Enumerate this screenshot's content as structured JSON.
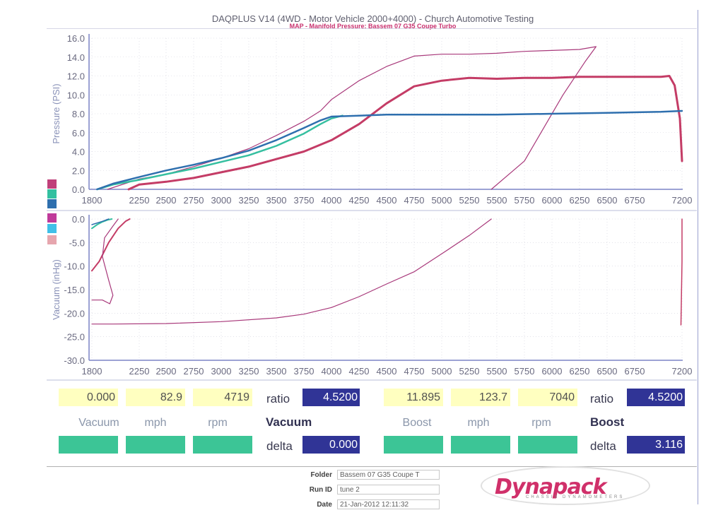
{
  "header": {
    "title": "DAQPLUS V14 (4WD - Motor Vehicle 2000+4000) - Church Automotive Testing",
    "subtitle": "MAP - Manifold Pressure: Bassem 07 G35 Coupe Turbo"
  },
  "colors": {
    "series_red": "#c43c66",
    "series_thin_red": "#a8387a",
    "series_teal": "#35bfa0",
    "series_blue": "#2e6fae",
    "grid": "#d0d0dc",
    "axis": "#7b83c6",
    "legend_top": [
      "#c0407a",
      "#33c0a0",
      "#2e6fae"
    ],
    "legend_bottom": [
      "#c03a9a",
      "#40c0e8",
      "#e6a6ae"
    ]
  },
  "chart_data": [
    {
      "type": "line",
      "ylabel": "Pressure (PSI)",
      "xlim": [
        1800,
        7200
      ],
      "ylim": [
        0,
        16
      ],
      "x_ticks": [
        "1800",
        "2250",
        "2500",
        "2750",
        "3000",
        "3250",
        "3500",
        "3750",
        "4000",
        "4250",
        "4500",
        "4750",
        "5000",
        "5250",
        "5500",
        "5750",
        "6000",
        "6250",
        "6500",
        "6750",
        "7200"
      ],
      "y_ticks": [
        "0.0",
        "2.0",
        "4.0",
        "6.0",
        "8.0",
        "10.0",
        "12.0",
        "14.0",
        "16.0"
      ],
      "series": [
        {
          "color": "#c43c66",
          "width": 3,
          "points": [
            [
              2150,
              0
            ],
            [
              2250,
              0.5
            ],
            [
              2500,
              0.8
            ],
            [
              2750,
              1.2
            ],
            [
              3000,
              1.8
            ],
            [
              3250,
              2.4
            ],
            [
              3500,
              3.2
            ],
            [
              3750,
              4.0
            ],
            [
              4000,
              5.2
            ],
            [
              4250,
              6.9
            ],
            [
              4500,
              9.1
            ],
            [
              4750,
              10.9
            ],
            [
              5000,
              11.5
            ],
            [
              5250,
              11.8
            ],
            [
              5500,
              11.7
            ],
            [
              5750,
              11.8
            ],
            [
              6000,
              11.8
            ],
            [
              6250,
              11.9
            ],
            [
              6500,
              11.9
            ],
            [
              6750,
              11.9
            ],
            [
              7000,
              11.9
            ],
            [
              7080,
              12.0
            ],
            [
              7130,
              11.0
            ],
            [
              7180,
              7.5
            ],
            [
              7200,
              3.0
            ]
          ]
        },
        {
          "color": "#a8387a",
          "width": 1.2,
          "points": [
            [
              1950,
              0
            ],
            [
              2250,
              1.1
            ],
            [
              2500,
              1.6
            ],
            [
              2750,
              2.4
            ],
            [
              3000,
              3.3
            ],
            [
              3250,
              4.3
            ],
            [
              3500,
              5.7
            ],
            [
              3750,
              7.2
            ],
            [
              3900,
              8.3
            ],
            [
              4000,
              9.5
            ],
            [
              4250,
              11.5
            ],
            [
              4500,
              13.0
            ],
            [
              4750,
              14.1
            ],
            [
              5000,
              14.3
            ],
            [
              5250,
              14.3
            ],
            [
              5500,
              14.4
            ],
            [
              5750,
              14.6
            ],
            [
              6000,
              14.7
            ],
            [
              6250,
              14.8
            ],
            [
              6400,
              15.1
            ],
            [
              6300,
              13.5
            ],
            [
              6100,
              10.0
            ],
            [
              5900,
              6.0
            ],
            [
              5750,
              3.0
            ],
            [
              5650,
              2.0
            ],
            [
              5450,
              0
            ]
          ]
        },
        {
          "color": "#35bfa0",
          "width": 2.5,
          "points": [
            [
              1850,
              0
            ],
            [
              2000,
              0.5
            ],
            [
              2250,
              1.0
            ],
            [
              2500,
              1.6
            ],
            [
              2750,
              2.2
            ],
            [
              3000,
              2.9
            ],
            [
              3250,
              3.6
            ],
            [
              3500,
              4.6
            ],
            [
              3750,
              5.9
            ],
            [
              3900,
              6.9
            ],
            [
              4000,
              7.5
            ],
            [
              4100,
              7.8
            ]
          ]
        },
        {
          "color": "#2e6fae",
          "width": 2.5,
          "points": [
            [
              1850,
              0
            ],
            [
              2000,
              0.6
            ],
            [
              2250,
              1.3
            ],
            [
              2500,
              2.0
            ],
            [
              2750,
              2.6
            ],
            [
              3000,
              3.3
            ],
            [
              3250,
              4.1
            ],
            [
              3500,
              5.2
            ],
            [
              3750,
              6.5
            ],
            [
              3900,
              7.3
            ],
            [
              4000,
              7.7
            ],
            [
              4250,
              7.8
            ],
            [
              4500,
              7.9
            ],
            [
              5000,
              7.9
            ],
            [
              5500,
              7.9
            ],
            [
              6000,
              8.0
            ],
            [
              6500,
              8.1
            ],
            [
              7000,
              8.2
            ],
            [
              7200,
              8.3
            ]
          ]
        }
      ]
    },
    {
      "type": "line",
      "ylabel": "Vacuum (inHg)",
      "xlim": [
        1800,
        7200
      ],
      "ylim": [
        -30,
        0
      ],
      "x_ticks": [
        "1800",
        "2250",
        "2500",
        "2750",
        "3000",
        "3250",
        "3500",
        "3750",
        "4000",
        "4250",
        "4500",
        "4750",
        "5000",
        "5250",
        "5500",
        "5750",
        "6000",
        "6250",
        "6500",
        "6750",
        "7200"
      ],
      "y_ticks": [
        "0.0",
        "-5.0",
        "-10.0",
        "-15.0",
        "-20.0",
        "-25.0",
        "-30.0"
      ],
      "series": [
        {
          "color": "#c43c66",
          "width": 2,
          "points": [
            [
              1800,
              -11
            ],
            [
              1870,
              -9
            ],
            [
              1960,
              -5
            ],
            [
              2050,
              -2
            ],
            [
              2120,
              -0.5
            ],
            [
              2160,
              0
            ]
          ]
        },
        {
          "color": "#a8387a",
          "width": 1.2,
          "points": [
            [
              1800,
              -22.3
            ],
            [
              2000,
              -22.3
            ],
            [
              2500,
              -22.2
            ],
            [
              3000,
              -21.8
            ],
            [
              3500,
              -21.0
            ],
            [
              3750,
              -20.2
            ],
            [
              4000,
              -18.8
            ],
            [
              4250,
              -16.5
            ],
            [
              4500,
              -13.8
            ],
            [
              4750,
              -11.2
            ],
            [
              5000,
              -7.4
            ],
            [
              5250,
              -3.5
            ],
            [
              5450,
              0
            ]
          ]
        },
        {
          "color": "#a8387a",
          "width": 1.2,
          "points": [
            [
              1800,
              -17.2
            ],
            [
              1900,
              -17.2
            ],
            [
              1970,
              -18.0
            ],
            [
              2000,
              -16.2
            ],
            [
              1960,
              -13.0
            ],
            [
              1900,
              -8.0
            ],
            [
              1920,
              -4.0
            ],
            [
              2000,
              -1.5
            ],
            [
              2050,
              0
            ]
          ]
        },
        {
          "color": "#35bfa0",
          "width": 2,
          "points": [
            [
              1800,
              -2.0
            ],
            [
              1850,
              -1.2
            ],
            [
              1900,
              -0.6
            ],
            [
              1950,
              -0.2
            ],
            [
              1990,
              0
            ]
          ]
        },
        {
          "color": "#2e6fae",
          "width": 1.5,
          "points": [
            [
              1800,
              -1.2
            ],
            [
              1900,
              -0.5
            ],
            [
              1960,
              0
            ]
          ]
        },
        {
          "color": "#c43c66",
          "width": 1.5,
          "points": [
            [
              7200,
              0
            ],
            [
              7200,
              -9
            ],
            [
              7190,
              -22.5
            ]
          ]
        }
      ]
    }
  ],
  "readout": {
    "left": {
      "v1": "0.000",
      "v2": "82.9",
      "v3": "4719",
      "ratio_label": "ratio",
      "ratio_value": "4.5200",
      "col1": "Vacuum",
      "col2": "mph",
      "col3": "rpm",
      "title": "Vacuum",
      "delta_label": "delta",
      "delta_value": "0.000"
    },
    "right": {
      "v1": "11.895",
      "v2": "123.7",
      "v3": "7040",
      "ratio_label": "ratio",
      "ratio_value": "4.5200",
      "col1": "Boost",
      "col2": "mph",
      "col3": "rpm",
      "title": "Boost",
      "delta_label": "delta",
      "delta_value": "3.116"
    }
  },
  "footer": {
    "folder_label": "Folder",
    "folder_value": "Bassem 07 G35 Coupe T",
    "runid_label": "Run ID",
    "runid_value": "tune 2",
    "date_label": "Date",
    "date_value": "21-Jan-2012 12:11:32",
    "logo_text": "Dynapack",
    "logo_sub": "CHASSIS DYNAMOMETERS"
  }
}
